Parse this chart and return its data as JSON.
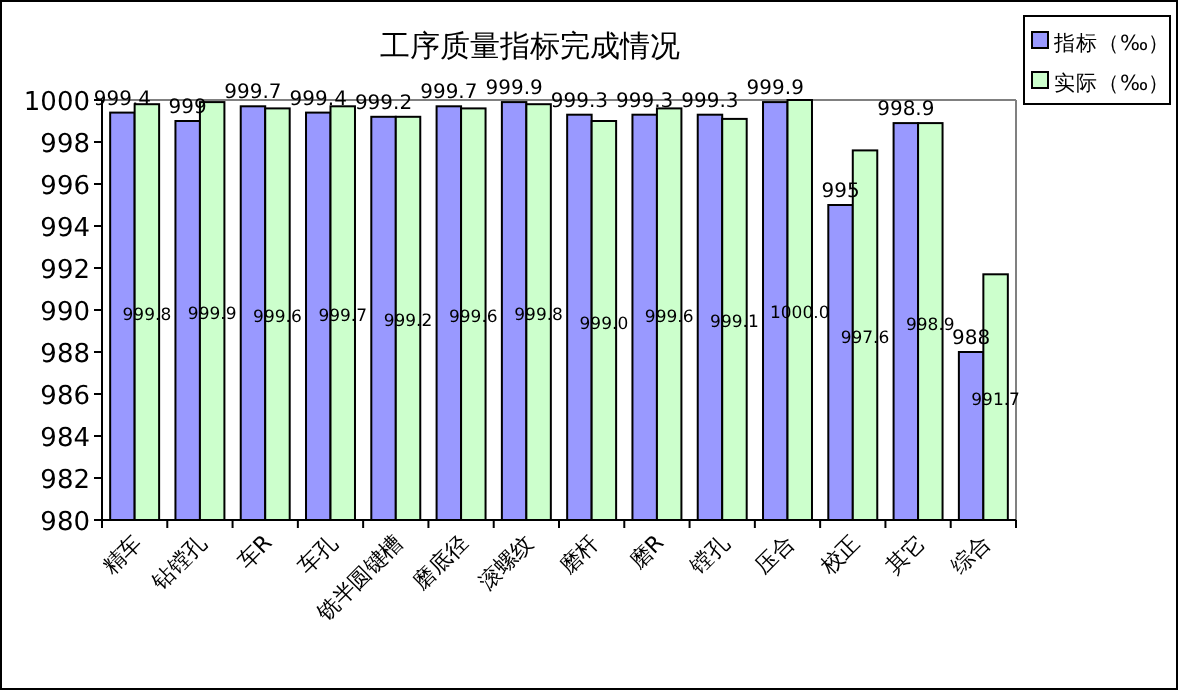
{
  "chart_data": {
    "type": "bar",
    "title": "工序质量指标完成情况",
    "categories": [
      "精车",
      "钻镗孔",
      "车R",
      "车孔",
      "铣半圆键槽",
      "磨底径",
      "滚螺纹",
      "磨杆",
      "磨R",
      "镗孔",
      "压合",
      "校正",
      "其它",
      "综合"
    ],
    "series": [
      {
        "name": "指标（‰）",
        "color": "#9999ff",
        "values": [
          999.4,
          999.0,
          999.7,
          999.4,
          999.2,
          999.7,
          999.9,
          999.3,
          999.3,
          999.3,
          999.9,
          995.0,
          998.9,
          988.0
        ],
        "value_labels": [
          "999.4",
          "999",
          "999.7",
          "999.4",
          "999.2",
          "999.7",
          "999.9",
          "999.3",
          "999.3",
          "999.3",
          "999.9",
          "995",
          "998.9",
          "988"
        ]
      },
      {
        "name": "实际（‰）",
        "color": "#ccffcc",
        "values": [
          999.8,
          999.9,
          999.6,
          999.7,
          999.2,
          999.6,
          999.8,
          999.0,
          999.6,
          999.1,
          1000.0,
          997.6,
          998.9,
          991.7
        ],
        "value_labels": [
          "999.8",
          "999.9",
          "999.6",
          "999.7",
          "999.2",
          "999.6",
          "999.8",
          "999.0",
          "999.6",
          "999.1",
          "1000.0",
          "997.6",
          "998.9",
          "991.7"
        ]
      }
    ],
    "ylim": [
      980,
      1000
    ],
    "yticks": [
      980,
      982,
      984,
      986,
      988,
      990,
      992,
      994,
      996,
      998,
      1000
    ],
    "grid": false,
    "legend": "top right"
  }
}
